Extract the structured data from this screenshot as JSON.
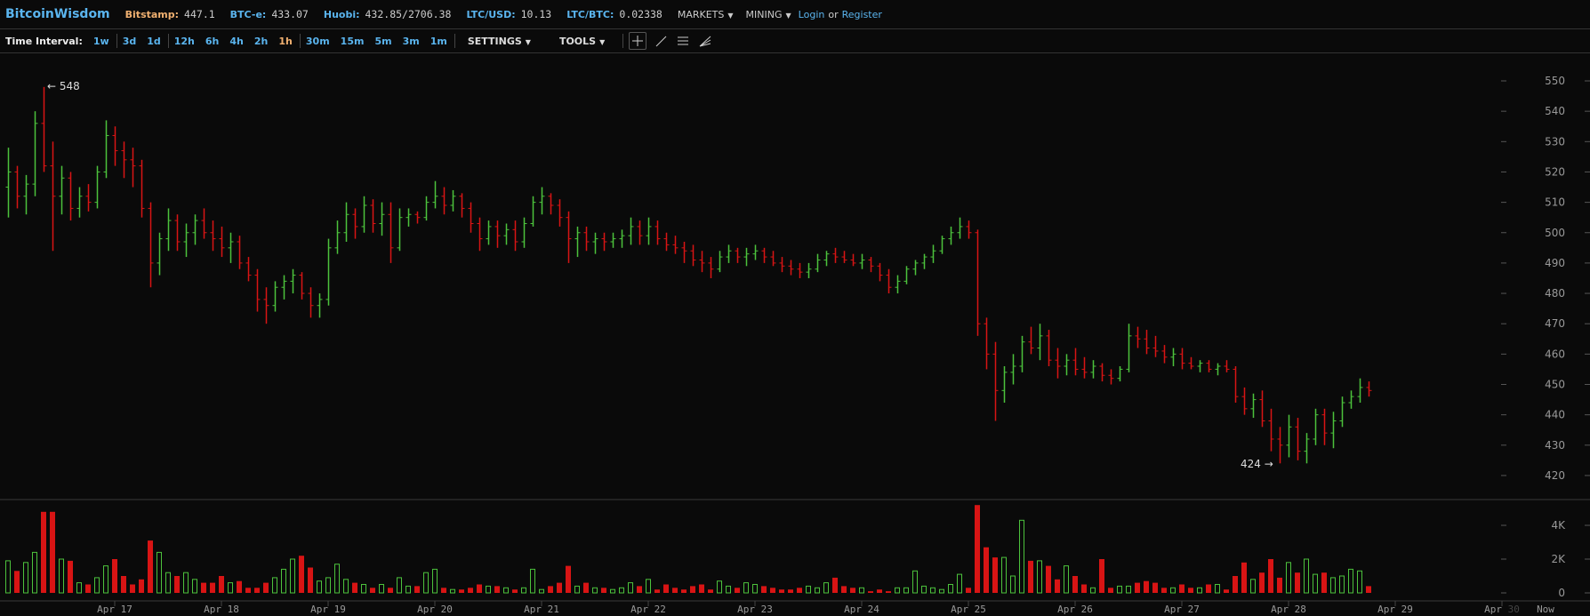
{
  "header": {
    "logo": "BitcoinWisdom",
    "tickers": [
      {
        "label": "Bitstamp:",
        "value": "447.1"
      },
      {
        "label": "BTC-e:",
        "value": "433.07"
      },
      {
        "label": "Huobi:",
        "value": "432.85/2706.38"
      },
      {
        "label": "LTC/USD:",
        "value": "10.13"
      },
      {
        "label": "LTC/BTC:",
        "value": "0.02338"
      }
    ],
    "menus": [
      {
        "label": "MARKETS"
      },
      {
        "label": "MINING"
      }
    ],
    "login": "Login",
    "or": "or",
    "register": "Register"
  },
  "toolbar": {
    "time_interval_label": "Time Interval:",
    "intervals": [
      "1w",
      "3d",
      "1d",
      "12h",
      "6h",
      "4h",
      "2h",
      "1h",
      "30m",
      "15m",
      "5m",
      "3m",
      "1m"
    ],
    "active_interval": "1h",
    "settings": "SETTINGS",
    "tools": "TOOLS",
    "drawing_tools": [
      "crosshair-icon",
      "line-icon",
      "horizontal-lines-icon",
      "fan-icon"
    ]
  },
  "chart_data": {
    "type": "ohlc",
    "colors": {
      "up": "#4cc23c",
      "down": "#d81414"
    },
    "price_axis": {
      "ticks": [
        420,
        430,
        440,
        450,
        460,
        470,
        480,
        490,
        500,
        510,
        520,
        530,
        540,
        550
      ],
      "range": [
        420,
        550
      ]
    },
    "volume_axis": {
      "ticks": [
        "0",
        "2K",
        "4K"
      ],
      "tick_values": [
        0,
        2,
        4
      ],
      "unit": "K"
    },
    "x_ticks": [
      {
        "label": "Apr 17"
      },
      {
        "label": "Apr 18"
      },
      {
        "label": "Apr 19"
      },
      {
        "label": "Apr 20"
      },
      {
        "label": "Apr 21"
      },
      {
        "label": "Apr 22"
      },
      {
        "label": "Apr 23"
      },
      {
        "label": "Apr 24"
      },
      {
        "label": "Apr 25"
      },
      {
        "label": "Apr 26"
      },
      {
        "label": "Apr 27"
      },
      {
        "label": "Apr 28"
      },
      {
        "label": "Apr 29"
      },
      {
        "label": "Apr",
        "label_dim": "30"
      },
      {
        "label": "Now"
      }
    ],
    "max_label": "← 548",
    "min_label": "424 →",
    "candles_ohlc": [
      [
        515,
        528,
        505,
        520
      ],
      [
        520,
        522,
        508,
        512
      ],
      [
        512,
        519,
        506,
        516
      ],
      [
        516,
        540,
        512,
        536
      ],
      [
        536,
        548,
        520,
        522
      ],
      [
        522,
        530,
        494,
        512
      ],
      [
        512,
        522,
        506,
        518
      ],
      [
        518,
        520,
        504,
        508
      ],
      [
        508,
        515,
        505,
        512
      ],
      [
        512,
        516,
        507,
        510
      ],
      [
        510,
        522,
        508,
        520
      ],
      [
        520,
        537,
        518,
        532
      ],
      [
        532,
        535,
        522,
        527
      ],
      [
        527,
        530,
        518,
        524
      ],
      [
        524,
        528,
        515,
        522
      ],
      [
        522,
        524,
        505,
        508
      ],
      [
        508,
        510,
        482,
        490
      ],
      [
        490,
        500,
        486,
        498
      ],
      [
        498,
        508,
        494,
        504
      ],
      [
        504,
        506,
        494,
        497
      ],
      [
        497,
        503,
        492,
        500
      ],
      [
        500,
        506,
        496,
        504
      ],
      [
        504,
        508,
        498,
        500
      ],
      [
        500,
        504,
        494,
        498
      ],
      [
        498,
        502,
        492,
        495
      ],
      [
        495,
        500,
        490,
        497
      ],
      [
        497,
        499,
        488,
        490
      ],
      [
        490,
        492,
        484,
        486
      ],
      [
        486,
        488,
        474,
        478
      ],
      [
        478,
        482,
        470,
        476
      ],
      [
        476,
        484,
        474,
        482
      ],
      [
        482,
        486,
        478,
        484
      ],
      [
        484,
        488,
        480,
        486
      ],
      [
        486,
        487,
        478,
        480
      ],
      [
        480,
        482,
        472,
        476
      ],
      [
        476,
        480,
        472,
        478
      ],
      [
        478,
        498,
        476,
        495
      ],
      [
        495,
        504,
        493,
        500
      ],
      [
        500,
        510,
        497,
        506
      ],
      [
        506,
        508,
        498,
        502
      ],
      [
        502,
        512,
        500,
        509
      ],
      [
        509,
        511,
        500,
        503
      ],
      [
        503,
        510,
        499,
        506
      ],
      [
        506,
        510,
        490,
        495
      ],
      [
        495,
        508,
        494,
        505
      ],
      [
        505,
        508,
        502,
        506
      ],
      [
        506,
        507,
        503,
        505
      ],
      [
        505,
        512,
        504,
        510
      ],
      [
        510,
        517,
        508,
        512
      ],
      [
        512,
        515,
        506,
        509
      ],
      [
        509,
        514,
        507,
        512
      ],
      [
        512,
        513,
        505,
        508
      ],
      [
        508,
        510,
        500,
        503
      ],
      [
        503,
        505,
        494,
        498
      ],
      [
        498,
        504,
        496,
        502
      ],
      [
        502,
        504,
        495,
        499
      ],
      [
        499,
        503,
        496,
        501
      ],
      [
        501,
        504,
        494,
        497
      ],
      [
        497,
        505,
        495,
        503
      ],
      [
        503,
        512,
        502,
        510
      ],
      [
        510,
        515,
        506,
        512
      ],
      [
        512,
        513,
        506,
        509
      ],
      [
        509,
        511,
        502,
        505
      ],
      [
        505,
        507,
        490,
        498
      ],
      [
        498,
        502,
        492,
        500
      ],
      [
        500,
        502,
        494,
        497
      ],
      [
        497,
        500,
        493,
        498
      ],
      [
        498,
        500,
        494,
        497
      ],
      [
        497,
        500,
        495,
        498
      ],
      [
        498,
        501,
        495,
        499
      ],
      [
        499,
        505,
        496,
        502
      ],
      [
        502,
        504,
        496,
        499
      ],
      [
        499,
        505,
        496,
        502
      ],
      [
        502,
        504,
        496,
        498
      ],
      [
        498,
        500,
        494,
        496
      ],
      [
        496,
        499,
        493,
        495
      ],
      [
        495,
        497,
        490,
        494
      ],
      [
        494,
        496,
        489,
        491
      ],
      [
        491,
        494,
        487,
        490
      ],
      [
        490,
        492,
        485,
        488
      ],
      [
        488,
        494,
        487,
        492
      ],
      [
        492,
        496,
        490,
        494
      ],
      [
        494,
        495,
        490,
        492
      ],
      [
        492,
        495,
        489,
        493
      ],
      [
        493,
        496,
        491,
        494
      ],
      [
        494,
        495,
        490,
        492
      ],
      [
        492,
        494,
        489,
        490
      ],
      [
        490,
        492,
        487,
        489
      ],
      [
        489,
        491,
        486,
        488
      ],
      [
        488,
        490,
        485,
        487
      ],
      [
        487,
        490,
        485,
        488
      ],
      [
        488,
        493,
        487,
        491
      ],
      [
        491,
        494,
        489,
        493
      ],
      [
        493,
        495,
        490,
        492
      ],
      [
        492,
        494,
        490,
        491
      ],
      [
        491,
        493,
        489,
        490
      ],
      [
        490,
        493,
        488,
        491
      ],
      [
        491,
        492,
        487,
        489
      ],
      [
        489,
        490,
        484,
        486
      ],
      [
        486,
        488,
        480,
        482
      ],
      [
        482,
        486,
        480,
        484
      ],
      [
        484,
        489,
        483,
        488
      ],
      [
        488,
        491,
        486,
        490
      ],
      [
        490,
        493,
        488,
        492
      ],
      [
        492,
        496,
        490,
        494
      ],
      [
        494,
        499,
        493,
        498
      ],
      [
        498,
        502,
        496,
        500
      ],
      [
        500,
        505,
        498,
        502
      ],
      [
        502,
        504,
        498,
        500
      ],
      [
        500,
        501,
        466,
        470
      ],
      [
        470,
        472,
        455,
        460
      ],
      [
        460,
        464,
        438,
        448
      ],
      [
        448,
        456,
        444,
        454
      ],
      [
        454,
        460,
        450,
        456
      ],
      [
        456,
        466,
        454,
        464
      ],
      [
        464,
        469,
        460,
        462
      ],
      [
        462,
        470,
        458,
        466
      ],
      [
        466,
        468,
        456,
        458
      ],
      [
        458,
        462,
        452,
        456
      ],
      [
        456,
        460,
        453,
        458
      ],
      [
        458,
        462,
        453,
        455
      ],
      [
        455,
        459,
        452,
        454
      ],
      [
        454,
        458,
        452,
        456
      ],
      [
        456,
        457,
        451,
        453
      ],
      [
        453,
        455,
        450,
        452
      ],
      [
        452,
        456,
        451,
        455
      ],
      [
        455,
        470,
        454,
        466
      ],
      [
        466,
        469,
        462,
        465
      ],
      [
        465,
        468,
        460,
        462
      ],
      [
        462,
        466,
        459,
        461
      ],
      [
        461,
        463,
        457,
        459
      ],
      [
        459,
        462,
        456,
        460
      ],
      [
        460,
        462,
        455,
        457
      ],
      [
        457,
        459,
        455,
        456
      ],
      [
        456,
        458,
        454,
        457
      ],
      [
        457,
        458,
        454,
        455
      ],
      [
        455,
        457,
        453,
        456
      ],
      [
        456,
        458,
        454,
        455
      ],
      [
        455,
        456,
        444,
        446
      ],
      [
        446,
        449,
        440,
        442
      ],
      [
        442,
        447,
        439,
        445
      ],
      [
        445,
        448,
        436,
        438
      ],
      [
        438,
        442,
        428,
        432
      ],
      [
        432,
        436,
        424,
        430
      ],
      [
        430,
        440,
        426,
        436
      ],
      [
        436,
        439,
        425,
        428
      ],
      [
        428,
        434,
        424,
        432
      ],
      [
        432,
        442,
        430,
        440
      ],
      [
        440,
        442,
        430,
        434
      ],
      [
        434,
        441,
        429,
        438
      ],
      [
        438,
        446,
        436,
        444
      ],
      [
        444,
        448,
        442,
        446
      ],
      [
        446,
        452,
        444,
        449
      ],
      [
        449,
        451,
        446,
        448
      ]
    ],
    "volumes_k": [
      1.9,
      1.3,
      1.8,
      2.4,
      4.8,
      4.8,
      2.0,
      1.9,
      0.6,
      0.5,
      0.9,
      1.6,
      2.0,
      1.0,
      0.5,
      0.8,
      3.1,
      2.4,
      1.2,
      1.0,
      1.2,
      0.8,
      0.6,
      0.6,
      1.0,
      0.6,
      0.7,
      0.3,
      0.3,
      0.6,
      0.9,
      1.4,
      2.0,
      2.2,
      1.5,
      0.7,
      0.9,
      1.7,
      0.8,
      0.6,
      0.5,
      0.3,
      0.5,
      0.3,
      0.9,
      0.4,
      0.4,
      1.2,
      1.4,
      0.3,
      0.2,
      0.2,
      0.3,
      0.5,
      0.4,
      0.4,
      0.3,
      0.2,
      0.3,
      1.4,
      0.2,
      0.4,
      0.6,
      1.6,
      0.4,
      0.6,
      0.3,
      0.3,
      0.2,
      0.3,
      0.6,
      0.4,
      0.8,
      0.2,
      0.5,
      0.3,
      0.2,
      0.4,
      0.5,
      0.2,
      0.7,
      0.4,
      0.3,
      0.6,
      0.5,
      0.4,
      0.3,
      0.2,
      0.2,
      0.3,
      0.4,
      0.3,
      0.6,
      0.9,
      0.4,
      0.3,
      0.3,
      0.1,
      0.2,
      0.1,
      0.3,
      0.3,
      1.3,
      0.4,
      0.3,
      0.2,
      0.5,
      1.1,
      0.3,
      5.2,
      2.7,
      2.1,
      2.1,
      1.0,
      4.3,
      1.9,
      1.9,
      1.6,
      0.8,
      1.6,
      1.0,
      0.5,
      0.3,
      2.0,
      0.3,
      0.4,
      0.4,
      0.6,
      0.7,
      0.6,
      0.3,
      0.3,
      0.5,
      0.3,
      0.3,
      0.5,
      0.5,
      0.2,
      1.0,
      1.8,
      0.8,
      1.2,
      2.0,
      0.9,
      1.8,
      1.2,
      2.0,
      1.1,
      1.2,
      0.9,
      1.0,
      1.4,
      1.3,
      0.4
    ]
  }
}
